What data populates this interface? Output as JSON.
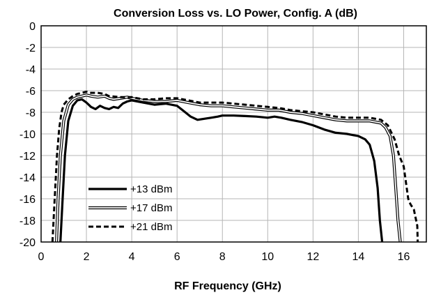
{
  "chart_data": {
    "type": "line",
    "title": "Conversion Loss vs. LO Power, Config. A (dB)",
    "xlabel": "RF Frequency  (GHz)",
    "ylabel": "",
    "xlim": [
      0,
      17
    ],
    "ylim": [
      -20,
      0
    ],
    "xticks": [
      0,
      2,
      4,
      6,
      8,
      10,
      12,
      14,
      16
    ],
    "yticks": [
      0,
      -2,
      -4,
      -6,
      -8,
      -10,
      -12,
      -14,
      -16,
      -18,
      -20
    ],
    "grid": true,
    "legend_position": "bottom-left",
    "series": [
      {
        "name": "+13 dBm",
        "style": "thick-solid",
        "color": "#000000",
        "x": [
          0.85,
          0.95,
          1.05,
          1.2,
          1.4,
          1.6,
          1.8,
          2.0,
          2.2,
          2.4,
          2.6,
          2.8,
          3.0,
          3.2,
          3.4,
          3.6,
          3.8,
          4.0,
          4.5,
          5.0,
          5.5,
          6.0,
          6.3,
          6.6,
          6.9,
          7.2,
          7.5,
          7.8,
          8.0,
          8.5,
          9.0,
          9.5,
          10.0,
          10.3,
          10.6,
          11.0,
          11.5,
          12.0,
          12.5,
          13.0,
          13.5,
          14.0,
          14.3,
          14.5,
          14.7,
          14.85,
          14.95,
          15.05
        ],
        "values": [
          -20,
          -16,
          -12,
          -8.8,
          -7.4,
          -6.9,
          -6.8,
          -7.1,
          -7.5,
          -7.7,
          -7.4,
          -7.6,
          -7.7,
          -7.5,
          -7.6,
          -7.2,
          -7.0,
          -6.9,
          -7.1,
          -7.3,
          -7.2,
          -7.4,
          -7.9,
          -8.4,
          -8.7,
          -8.6,
          -8.5,
          -8.4,
          -8.3,
          -8.3,
          -8.35,
          -8.4,
          -8.5,
          -8.4,
          -8.5,
          -8.7,
          -8.9,
          -9.2,
          -9.6,
          -9.9,
          -10.0,
          -10.2,
          -10.5,
          -11.0,
          -12.5,
          -15.0,
          -18.0,
          -20
        ]
      },
      {
        "name": "+17 dBm",
        "style": "double-line",
        "color": "#000000",
        "x": [
          0.68,
          0.75,
          0.85,
          1.0,
          1.2,
          1.4,
          1.6,
          1.8,
          2.0,
          2.2,
          2.5,
          2.8,
          3.0,
          3.2,
          3.5,
          3.8,
          4.0,
          4.5,
          5.0,
          5.5,
          6.0,
          6.5,
          7.0,
          7.5,
          8.0,
          8.5,
          9.0,
          9.5,
          10.0,
          10.5,
          11.0,
          11.5,
          12.0,
          12.5,
          13.0,
          13.5,
          14.0,
          14.5,
          15.0,
          15.2,
          15.4,
          15.55,
          15.65,
          15.75,
          15.85
        ],
        "values": [
          -20,
          -16,
          -12,
          -8.8,
          -7.3,
          -6.8,
          -6.6,
          -6.5,
          -6.4,
          -6.5,
          -6.6,
          -6.5,
          -6.7,
          -6.8,
          -6.7,
          -6.6,
          -6.7,
          -6.9,
          -7.0,
          -7.0,
          -6.9,
          -7.1,
          -7.3,
          -7.4,
          -7.4,
          -7.5,
          -7.6,
          -7.7,
          -7.8,
          -7.8,
          -8.0,
          -8.1,
          -8.3,
          -8.5,
          -8.7,
          -8.8,
          -8.8,
          -8.8,
          -9.0,
          -9.4,
          -10.2,
          -12.0,
          -15.0,
          -18.0,
          -20
        ]
      },
      {
        "name": "+21 dBm",
        "style": "dashed",
        "color": "#000000",
        "x": [
          0.5,
          0.55,
          0.6,
          0.7,
          0.8,
          0.9,
          1.0,
          1.2,
          1.4,
          1.6,
          1.8,
          2.0,
          2.2,
          2.5,
          2.8,
          3.0,
          3.5,
          4.0,
          4.5,
          5.0,
          5.5,
          6.0,
          6.5,
          7.0,
          7.5,
          8.0,
          8.5,
          9.0,
          9.5,
          10.0,
          10.5,
          11.0,
          11.5,
          12.0,
          12.5,
          13.0,
          13.5,
          14.0,
          14.5,
          15.0,
          15.3,
          15.6,
          15.8,
          16.0,
          16.2,
          16.3,
          16.45,
          16.6,
          16.62
        ],
        "values": [
          -20,
          -18,
          -16,
          -12,
          -9.5,
          -8.0,
          -7.3,
          -6.8,
          -6.5,
          -6.3,
          -6.2,
          -6.1,
          -6.2,
          -6.2,
          -6.3,
          -6.5,
          -6.6,
          -6.6,
          -6.8,
          -6.8,
          -6.7,
          -6.7,
          -6.9,
          -7.1,
          -7.1,
          -7.1,
          -7.2,
          -7.3,
          -7.4,
          -7.5,
          -7.6,
          -7.8,
          -7.9,
          -8.0,
          -8.2,
          -8.4,
          -8.5,
          -8.5,
          -8.5,
          -8.7,
          -9.2,
          -10.5,
          -12.0,
          -13.0,
          -16.0,
          -16.5,
          -17.0,
          -18.5,
          -20
        ]
      }
    ]
  }
}
